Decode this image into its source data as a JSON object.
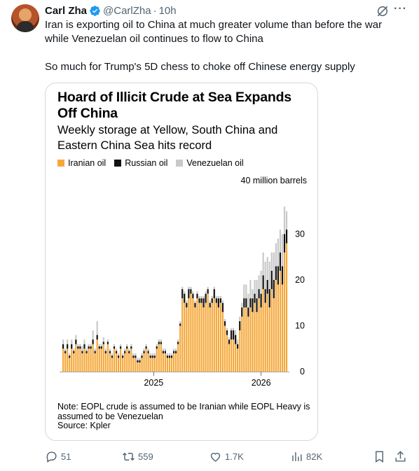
{
  "post": {
    "author": "Carl Zha",
    "handle": "@CarlZha",
    "separator": "·",
    "time": "10h",
    "text_line1": "Iran is exporting oil to China at much greater volume than before the war",
    "text_line2": "while Venezuelan oil continues to flow to China",
    "text_para2": "So much for Trump's 5D chess to choke off Chinese energy supply"
  },
  "actions": {
    "replies": "51",
    "reposts": "559",
    "likes": "1.7K",
    "views": "82K"
  },
  "colors": {
    "iranian": "#f5a83a",
    "russian": "#111111",
    "venezuelan": "#c9c9c9",
    "accent": "#1d9bf0"
  },
  "chart_data": {
    "type": "bar",
    "stacked": true,
    "title": "Hoard of Illicit Crude at Sea Expands Off China",
    "subtitle": "Weekly storage at Yellow, South China and Eastern China Sea hits record",
    "unit_label": "40 million barrels",
    "ylim": [
      0,
      40
    ],
    "yticks": [
      0,
      10,
      20,
      30
    ],
    "xtick_labels": [
      "2025",
      "2026"
    ],
    "x_range": [
      2024.15,
      2026.25
    ],
    "series": [
      {
        "name": "Iranian oil",
        "values": [
          5,
          4,
          5,
          3,
          5,
          4,
          6,
          5,
          5,
          4,
          5,
          4,
          5,
          5,
          6,
          4,
          7,
          5,
          5,
          6,
          4,
          6,
          4,
          3,
          5,
          4,
          3,
          5,
          3,
          4,
          5,
          4,
          5,
          3,
          3,
          2,
          2,
          3,
          4,
          5,
          4,
          3,
          3,
          3,
          5,
          6,
          6,
          4,
          4,
          3,
          3,
          3,
          4,
          4,
          6,
          10,
          16,
          15,
          14,
          16,
          17,
          16,
          14,
          16,
          15,
          15,
          14,
          15,
          17,
          14,
          15,
          16,
          15,
          14,
          15,
          13,
          10,
          8,
          6,
          7,
          7,
          6,
          5,
          9,
          12,
          14,
          14,
          12,
          14,
          13,
          15,
          13,
          16,
          14,
          18,
          15,
          17,
          14,
          18,
          16,
          20,
          19,
          22,
          19,
          26,
          28
        ]
      },
      {
        "name": "Russian oil",
        "values": [
          1,
          0.5,
          1,
          0.5,
          1,
          0.5,
          1,
          0.5,
          0.5,
          0.5,
          1,
          0.5,
          0.5,
          0.5,
          1,
          0.5,
          1,
          0.5,
          0.5,
          0.5,
          0.5,
          0.5,
          0.5,
          0.5,
          0.5,
          0.5,
          0.5,
          0.5,
          0.5,
          0.5,
          0.5,
          0.5,
          0.5,
          0.5,
          0.5,
          0.5,
          0.5,
          0.5,
          0.5,
          0.5,
          0.5,
          0.5,
          0.5,
          0.5,
          0.5,
          0.5,
          0.5,
          0.5,
          0.5,
          0.5,
          0.5,
          0.5,
          0.5,
          0.5,
          0.5,
          0.5,
          2,
          2,
          1,
          2,
          1,
          1,
          1,
          1,
          1,
          1,
          2,
          2,
          1,
          1,
          1,
          2,
          1,
          2,
          1,
          2,
          1,
          1,
          1,
          2,
          2,
          2,
          1,
          2,
          2,
          2,
          2,
          2,
          2,
          3,
          2,
          3,
          2,
          3,
          3,
          3,
          3,
          4,
          4,
          4,
          3,
          4,
          4,
          4,
          4,
          3
        ]
      },
      {
        "name": "Venezuelan oil",
        "values": [
          1,
          0.5,
          1,
          0.5,
          1,
          0.5,
          1,
          0.5,
          0.5,
          1,
          1,
          0.5,
          0.5,
          0.5,
          2,
          0.5,
          3,
          0.5,
          0.5,
          1,
          0.5,
          0.5,
          0.5,
          0.5,
          0.5,
          0.5,
          0.5,
          0.5,
          0.5,
          0.5,
          0.5,
          0.5,
          0.5,
          0.5,
          0.5,
          0.5,
          0.5,
          0.5,
          0.5,
          0.5,
          0.5,
          0.5,
          0.5,
          0.5,
          0.5,
          0.5,
          0.5,
          0.5,
          0.5,
          0.5,
          0.5,
          0.5,
          0.5,
          0.5,
          0.5,
          0.5,
          0.5,
          0.5,
          0.5,
          0.5,
          0.5,
          0.5,
          0.5,
          0.5,
          0.5,
          0.5,
          0.5,
          0.5,
          0.5,
          0.5,
          0.5,
          0.5,
          0.5,
          0.5,
          0.5,
          0.5,
          0.5,
          0.5,
          0.5,
          0.5,
          0.5,
          1,
          1,
          1,
          1,
          3,
          3,
          3,
          4,
          2,
          3,
          4,
          3,
          5,
          5,
          6,
          5,
          6,
          4,
          6,
          5,
          6,
          5,
          7,
          6,
          4
        ]
      }
    ],
    "note": "Note: EOPL crude is assumed to be Iranian while EOPL Heavy is assumed to be Venezuelan",
    "source": "Source: Kpler",
    "grid": false,
    "legend_position": "top-left"
  }
}
